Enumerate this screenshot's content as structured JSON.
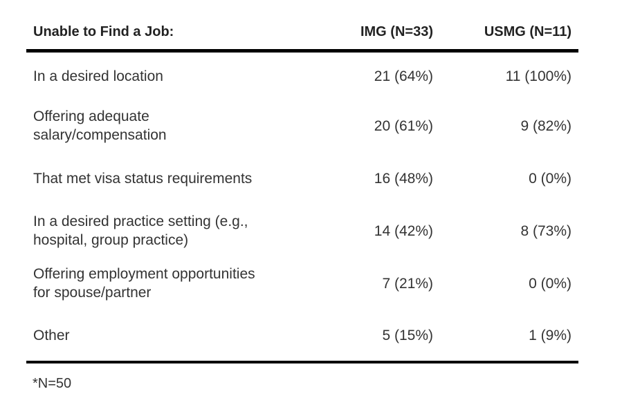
{
  "table": {
    "headers": {
      "category": "Unable to Find a Job:",
      "img": "IMG (N=33)",
      "usmg": "USMG (N=11)"
    },
    "rows": [
      {
        "category": "In a desired location",
        "img": "21 (64%)",
        "usmg": "11 (100%)"
      },
      {
        "category_line1": "Offering adequate",
        "category_line2": "salary/compensation",
        "img": "20 (61%)",
        "usmg": "9 (82%)"
      },
      {
        "category": "That met visa status requirements",
        "img": "16 (48%)",
        "usmg": "0 (0%)"
      },
      {
        "category_line1": "In a desired practice setting (e.g.,",
        "category_line2": "hospital, group practice)",
        "img": "14 (42%)",
        "usmg": "8 (73%)"
      },
      {
        "category_line1": "Offering employment opportunities",
        "category_line2": "for spouse/partner",
        "img": "7 (21%)",
        "usmg": "0 (0%)"
      },
      {
        "category": "Other",
        "img": "5 (15%)",
        "usmg": "1 (9%)"
      }
    ]
  },
  "footnote": "*N=50"
}
